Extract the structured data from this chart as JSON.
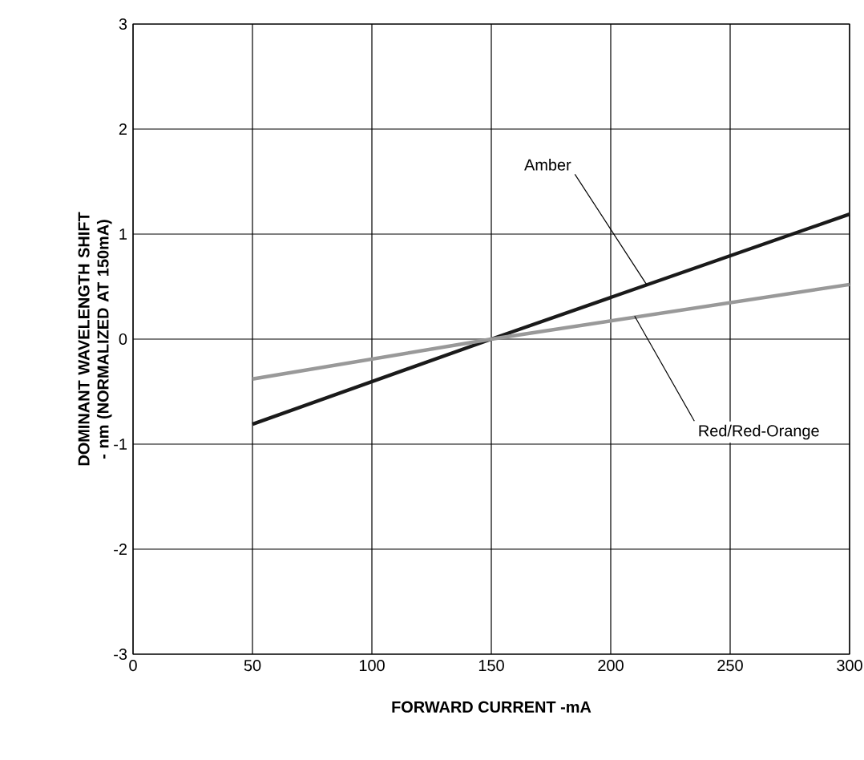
{
  "chart_data": {
    "type": "line",
    "xlabel": "FORWARD CURRENT -mA",
    "ylabel": "DOMINANT WAVELENGTH SHIFT - nm (NORMALIZED AT 150mA)",
    "xlim": [
      0,
      300
    ],
    "xticks": [
      0,
      50,
      100,
      150,
      200,
      250,
      300
    ],
    "ylim": [
      -3,
      3
    ],
    "yticks": [
      -3,
      -2,
      -1,
      0,
      1,
      2,
      3
    ],
    "grid": true,
    "marker": "none",
    "line_style": "solid",
    "series": [
      {
        "color": "#1a1a1a",
        "x": [
          50,
          150,
          300
        ],
        "values": [
          -0.81,
          0,
          1.19
        ]
      },
      {
        "color": "#999999",
        "x": [
          50,
          150,
          300
        ],
        "values": [
          -0.38,
          0,
          0.52
        ]
      }
    ],
    "annotations": [
      {
        "text": "Amber",
        "x": 215,
        "y": 0.52
      },
      {
        "text": "Red/Red-Orange",
        "x": 210,
        "y": 0.22
      }
    ]
  }
}
